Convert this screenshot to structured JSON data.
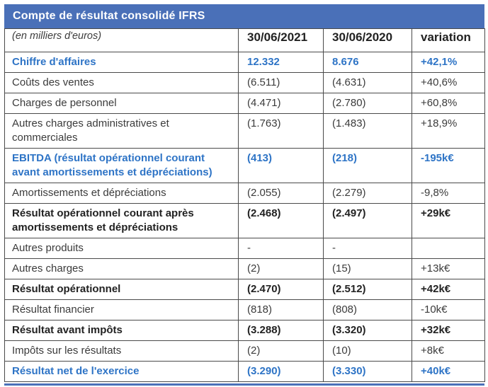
{
  "title": "Compte de résultat consolidé IFRS",
  "colors": {
    "header_bar": "#4a70b8",
    "accent_text": "#2e74c6",
    "border": "#4a4a4a"
  },
  "table": {
    "columns": {
      "label": "(en milliers d'euros)",
      "col2021": "30/06/2021",
      "col2020": "30/06/2020",
      "variation": "variation"
    },
    "rows": [
      {
        "label": "Chiffre d'affaires",
        "v2021": "12.332",
        "v2020": "8.676",
        "variation": "+42,1%",
        "style": "blue"
      },
      {
        "label": "Coûts des ventes",
        "v2021": "(6.511)",
        "v2020": "(4.631)",
        "variation": "+40,6%",
        "style": "normal"
      },
      {
        "label": "Charges de personnel",
        "v2021": "(4.471)",
        "v2020": "(2.780)",
        "variation": "+60,8%",
        "style": "normal"
      },
      {
        "label": "Autres charges administratives et commerciales",
        "v2021": "(1.763)",
        "v2020": "(1.483)",
        "variation": "+18,9%",
        "style": "normal"
      },
      {
        "label": "EBITDA (résultat opérationnel courant avant amortissements et dépréciations)",
        "v2021": "(413)",
        "v2020": "(218)",
        "variation": "-195k€",
        "style": "blue"
      },
      {
        "label": "Amortissements et dépréciations",
        "v2021": "(2.055)",
        "v2020": "(2.279)",
        "variation": "-9,8%",
        "style": "normal"
      },
      {
        "label": "Résultat opérationnel courant après amortissements et dépréciations",
        "v2021": "(2.468)",
        "v2020": "(2.497)",
        "variation": "+29k€",
        "style": "bold"
      },
      {
        "label": "Autres produits",
        "v2021": "-",
        "v2020": "-",
        "variation": "",
        "style": "normal"
      },
      {
        "label": "Autres charges",
        "v2021": "(2)",
        "v2020": "(15)",
        "variation": "+13k€",
        "style": "normal"
      },
      {
        "label": "Résultat opérationnel",
        "v2021": "(2.470)",
        "v2020": "(2.512)",
        "variation": "+42k€",
        "style": "bold"
      },
      {
        "label": "Résultat financier",
        "v2021": "(818)",
        "v2020": "(808)",
        "variation": "-10k€",
        "style": "normal"
      },
      {
        "label": "Résultat avant impôts",
        "v2021": "(3.288)",
        "v2020": "(3.320)",
        "variation": "+32k€",
        "style": "bold"
      },
      {
        "label": "Impôts sur les résultats",
        "v2021": "(2)",
        "v2020": "(10)",
        "variation": "+8k€",
        "style": "normal"
      },
      {
        "label": "Résultat net de l'exercice",
        "v2021": "(3.290)",
        "v2020": "(3.330)",
        "variation": "+40k€",
        "style": "blue"
      }
    ]
  }
}
